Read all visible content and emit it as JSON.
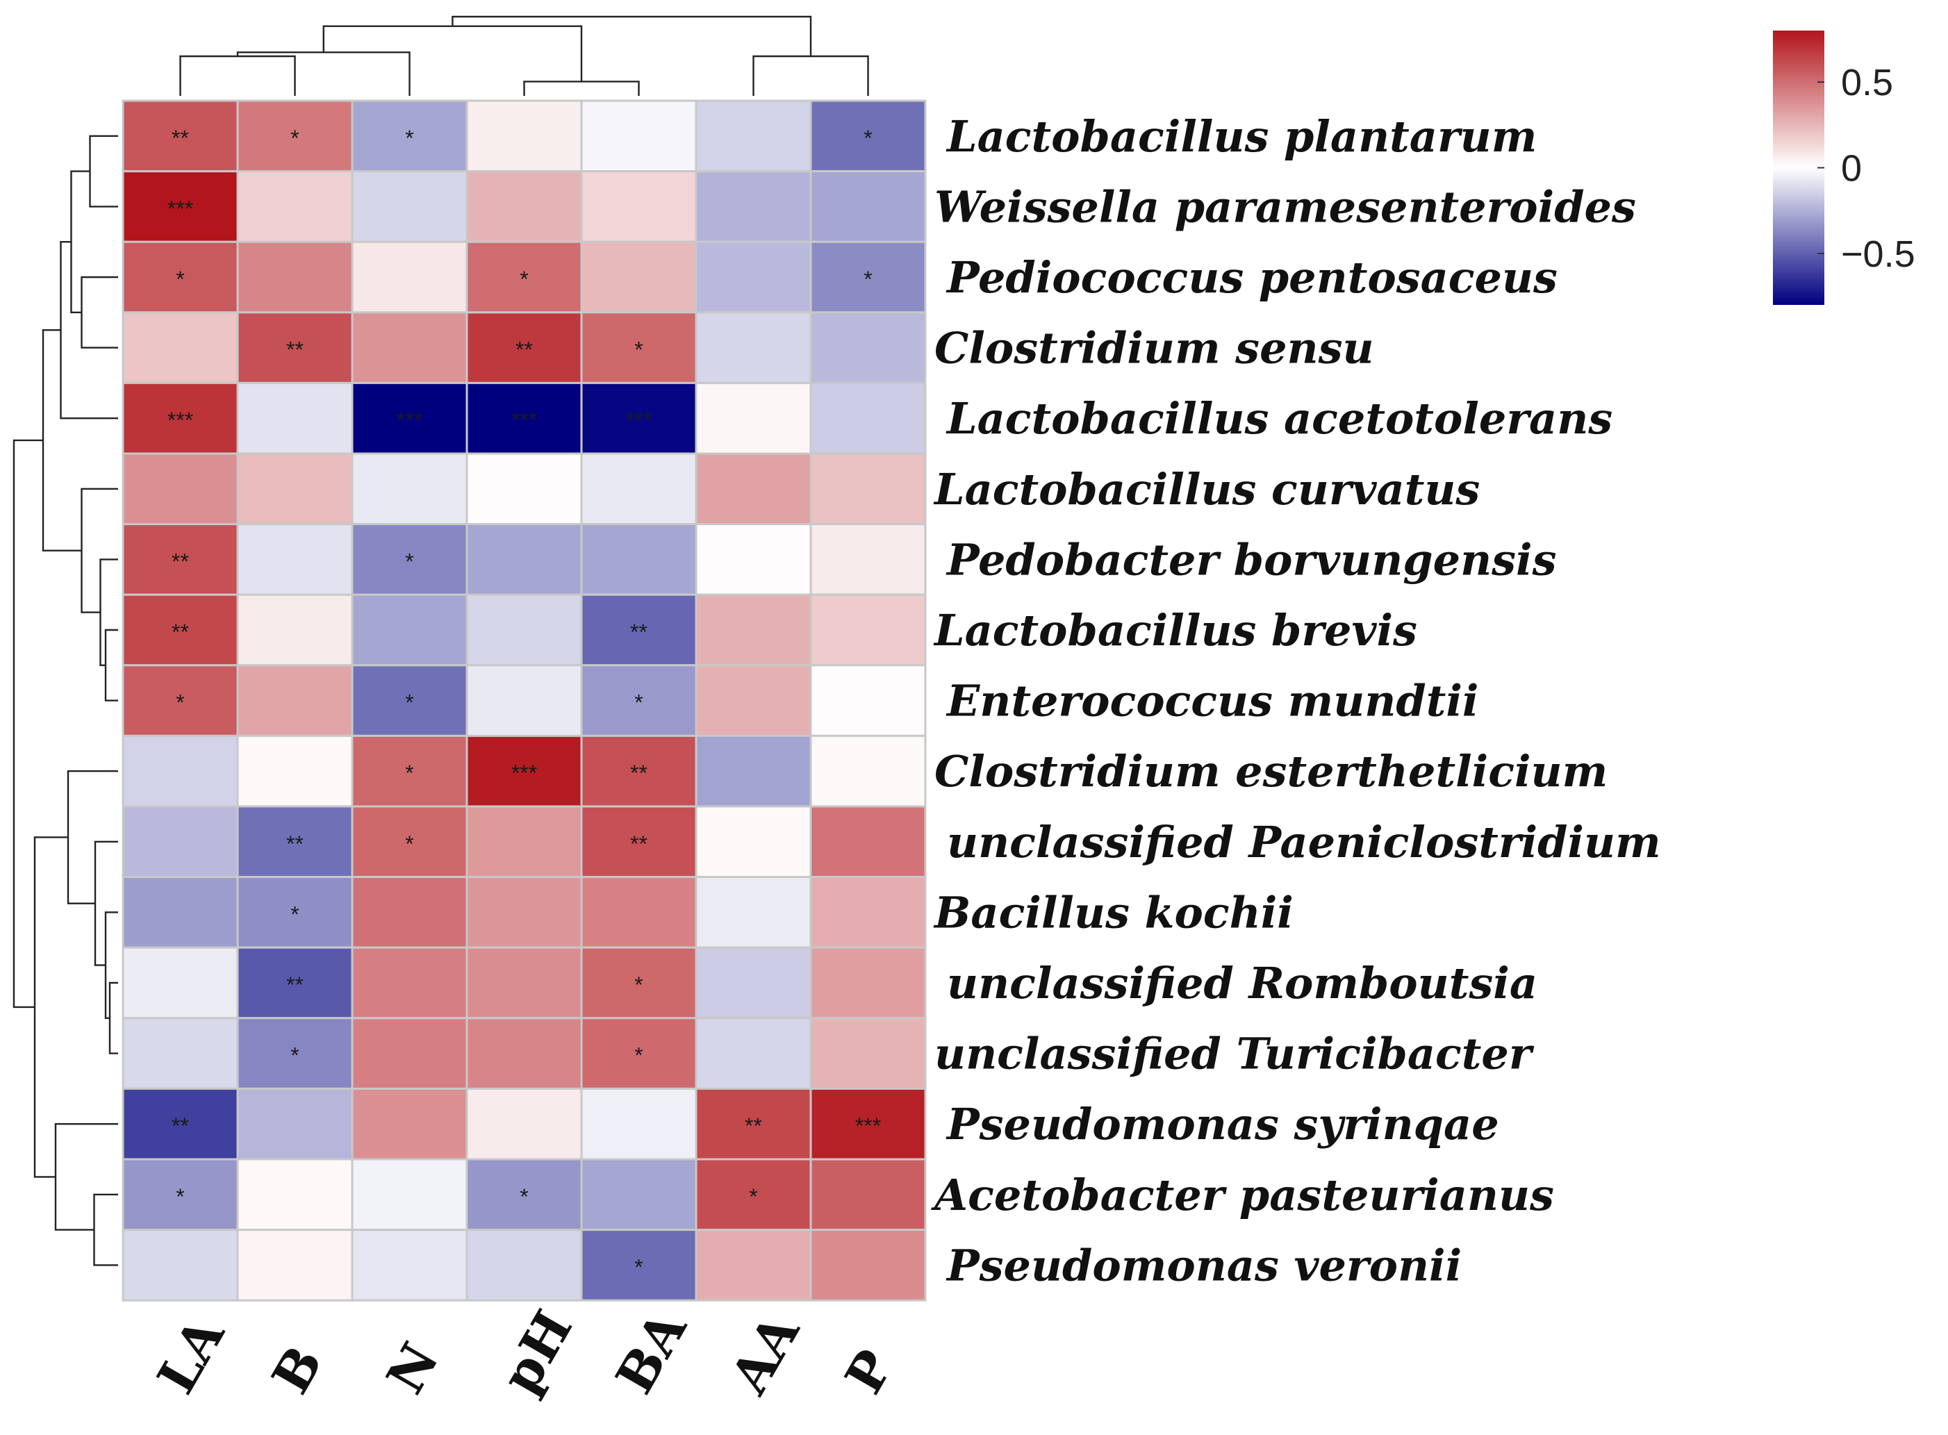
{
  "chart_data": {
    "type": "heatmap",
    "title": "",
    "columns": [
      "LA",
      "B",
      "N",
      "pH",
      "BA",
      "AA",
      "P"
    ],
    "rows": [
      "Lactobacillus plantarum",
      "Weissella paramesenteroides",
      "Pediococcus pentosaceus",
      "Clostridium sensu",
      "Lactobacillus acetotolerans",
      "Lactobacillus curvatus",
      "Pedobacter borvungensis",
      "Lactobacillus brevis",
      "Enterococcus mundtii",
      "Clostridium esterthetlicium",
      "unclassified Paeniclostridium",
      "Bacillus kochii",
      "unclassified Romboutsia",
      "unclassified Turicibacter",
      "Pseudomonas syrinqae",
      "Acetobacter pasteurianus",
      "Pseudomonas veronii"
    ],
    "values": [
      [
        0.58,
        0.46,
        -0.28,
        0.06,
        -0.03,
        -0.14,
        -0.45
      ],
      [
        0.8,
        0.16,
        -0.13,
        0.26,
        0.14,
        -0.24,
        -0.28
      ],
      [
        0.57,
        0.42,
        0.08,
        0.5,
        0.24,
        -0.22,
        -0.36
      ],
      [
        0.2,
        0.6,
        0.37,
        0.68,
        0.52,
        -0.13,
        -0.22
      ],
      [
        0.7,
        -0.09,
        -0.95,
        -0.8,
        -0.78,
        0.03,
        -0.16
      ],
      [
        0.38,
        0.23,
        -0.07,
        0.01,
        -0.07,
        0.32,
        0.21
      ],
      [
        0.6,
        -0.09,
        -0.38,
        -0.28,
        -0.28,
        0.01,
        0.07
      ],
      [
        0.63,
        0.07,
        -0.28,
        -0.13,
        -0.48,
        0.27,
        0.18
      ],
      [
        0.56,
        0.31,
        -0.45,
        -0.07,
        -0.32,
        0.27,
        0.01
      ],
      [
        -0.14,
        0.02,
        0.52,
        0.78,
        0.6,
        -0.29,
        0.02
      ],
      [
        -0.22,
        -0.45,
        0.52,
        0.35,
        0.6,
        0.02,
        0.48
      ],
      [
        -0.31,
        -0.35,
        0.49,
        0.36,
        0.43,
        -0.06,
        0.28
      ],
      [
        -0.06,
        -0.52,
        0.44,
        0.39,
        0.52,
        -0.16,
        0.33
      ],
      [
        -0.12,
        -0.38,
        0.44,
        0.42,
        0.51,
        -0.13,
        0.26
      ],
      [
        -0.6,
        -0.23,
        0.38,
        0.07,
        -0.05,
        0.63,
        0.76
      ],
      [
        -0.33,
        0.02,
        -0.04,
        -0.33,
        -0.28,
        0.61,
        0.55
      ],
      [
        -0.12,
        0.04,
        -0.08,
        -0.13,
        -0.46,
        0.28,
        0.4
      ]
    ],
    "significance": [
      [
        "**",
        "*",
        "*",
        "",
        "",
        "",
        "*"
      ],
      [
        "***",
        "",
        "",
        "",
        "",
        "",
        ""
      ],
      [
        "*",
        "",
        "",
        "*",
        "",
        "",
        "*"
      ],
      [
        "",
        "**",
        "",
        "**",
        "*",
        "",
        ""
      ],
      [
        "***",
        "",
        "***",
        "***",
        "***",
        "",
        ""
      ],
      [
        "",
        "",
        "",
        "",
        "",
        "",
        ""
      ],
      [
        "**",
        "",
        "*",
        "",
        "",
        "",
        ""
      ],
      [
        "**",
        "",
        "",
        "",
        "**",
        "",
        ""
      ],
      [
        "*",
        "",
        "*",
        "",
        "*",
        "",
        ""
      ],
      [
        "",
        "",
        "*",
        "***",
        "**",
        "",
        ""
      ],
      [
        "",
        "**",
        "*",
        "",
        "**",
        "",
        ""
      ],
      [
        "",
        "*",
        "",
        "",
        "",
        "",
        ""
      ],
      [
        "",
        "**",
        "",
        "",
        "*",
        "",
        ""
      ],
      [
        "",
        "*",
        "",
        "",
        "*",
        "",
        ""
      ],
      [
        "**",
        "",
        "",
        "",
        "",
        "**",
        "***"
      ],
      [
        "*",
        "",
        "",
        "*",
        "",
        "*",
        ""
      ],
      [
        "",
        "",
        "",
        "",
        "*",
        "",
        ""
      ]
    ],
    "colorbar": {
      "range": [
        -0.8,
        0.8
      ],
      "ticks": [
        0.5,
        0,
        -0.5
      ],
      "tick_labels": [
        "0.5",
        "0",
        "−0.5"
      ],
      "colors": {
        "low": "#00007f",
        "mid": "#ffffff",
        "high": "#b2161c"
      }
    },
    "col_dendrogram": [
      {
        "a": 0,
        "b": 1,
        "h": 0.5
      },
      {
        "a": 3,
        "b": 4,
        "h": 0.18
      },
      {
        "a": 2,
        "b": 7,
        "h": 0.55
      },
      {
        "a": 5,
        "b": 6,
        "h": 0.5
      },
      {
        "a": 8,
        "b": 9,
        "h": 0.88
      },
      {
        "a": 10,
        "b": 11,
        "h": 1.0
      }
    ],
    "row_dendrogram": [
      {
        "a": 0,
        "b": 1,
        "h": 0.27
      },
      {
        "a": 2,
        "b": 3,
        "h": 0.35
      },
      {
        "a": 17,
        "b": 18,
        "h": 0.45
      },
      {
        "a": 19,
        "b": 4,
        "h": 0.55
      },
      {
        "a": 7,
        "b": 8,
        "h": 0.12
      },
      {
        "a": 6,
        "b": 21,
        "h": 0.17
      },
      {
        "a": 5,
        "b": 22,
        "h": 0.35
      },
      {
        "a": 20,
        "b": 23,
        "h": 0.72
      },
      {
        "a": 12,
        "b": 13,
        "h": 0.08
      },
      {
        "a": 11,
        "b": 25,
        "h": 0.12
      },
      {
        "a": 10,
        "b": 26,
        "h": 0.22
      },
      {
        "a": 9,
        "b": 27,
        "h": 0.48
      },
      {
        "a": 15,
        "b": 16,
        "h": 0.23
      },
      {
        "a": 14,
        "b": 29,
        "h": 0.6
      },
      {
        "a": 28,
        "b": 30,
        "h": 0.8
      },
      {
        "a": 24,
        "b": 31,
        "h": 1.0
      }
    ]
  }
}
